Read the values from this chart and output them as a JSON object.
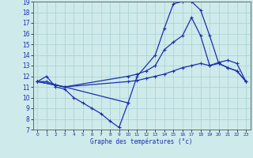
{
  "xlabel": "Graphe des températures (°c)",
  "xlim": [
    -0.5,
    23.5
  ],
  "ylim": [
    7,
    19
  ],
  "yticks": [
    7,
    8,
    9,
    10,
    11,
    12,
    13,
    14,
    15,
    16,
    17,
    18,
    19
  ],
  "xticks": [
    0,
    1,
    2,
    3,
    4,
    5,
    6,
    7,
    8,
    9,
    10,
    11,
    12,
    13,
    14,
    15,
    16,
    17,
    18,
    19,
    20,
    21,
    22,
    23
  ],
  "background_color": "#ceeaea",
  "grid_color": "#aacfcf",
  "line_color": "#1a2fb0",
  "line1_x": [
    0,
    1,
    2,
    3,
    4,
    5,
    6,
    7,
    8,
    9,
    10
  ],
  "line1_y": [
    11.5,
    12.0,
    11.0,
    10.8,
    10.0,
    9.5,
    9.0,
    8.5,
    7.8,
    7.2,
    9.5
  ],
  "line2_x": [
    0,
    1,
    2,
    3,
    10,
    11,
    13,
    14,
    15,
    16,
    17,
    18,
    19,
    20,
    21,
    22,
    23
  ],
  "line2_y": [
    11.5,
    11.5,
    11.2,
    11.0,
    9.5,
    12.0,
    14.0,
    16.5,
    18.8,
    19.0,
    19.0,
    18.2,
    15.8,
    13.2,
    12.8,
    12.5,
    11.5
  ],
  "line3_x": [
    0,
    3,
    10,
    11,
    12,
    13,
    14,
    15,
    16,
    17,
    18,
    19,
    20,
    21,
    22,
    23
  ],
  "line3_y": [
    11.5,
    11.0,
    12.0,
    12.2,
    12.5,
    13.0,
    14.5,
    15.2,
    15.8,
    17.5,
    15.8,
    13.0,
    13.2,
    12.8,
    12.5,
    11.5
  ],
  "line4_x": [
    0,
    3,
    10,
    11,
    12,
    13,
    14,
    15,
    16,
    17,
    18,
    19,
    20,
    21,
    22,
    23
  ],
  "line4_y": [
    11.5,
    11.0,
    11.5,
    11.6,
    11.8,
    12.0,
    12.2,
    12.5,
    12.8,
    13.0,
    13.2,
    13.0,
    13.3,
    13.5,
    13.2,
    11.5
  ]
}
